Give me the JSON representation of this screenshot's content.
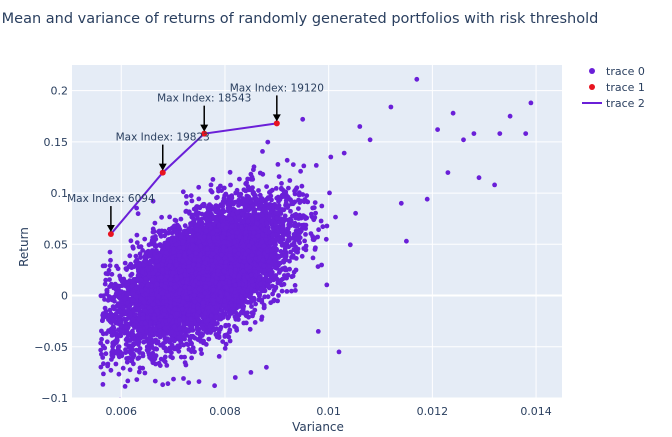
{
  "chart_data": {
    "type": "scatter",
    "title": "Mean and variance of returns of randomly generated portfolios with risk threshold",
    "xlabel": "Variance",
    "ylabel": "Return",
    "xlim": [
      0.00505,
      0.0145
    ],
    "ylim": [
      -0.1,
      0.225
    ],
    "x_ticks": [
      0.006,
      0.008,
      0.01,
      0.012,
      0.014
    ],
    "x_tick_labels": [
      "0.006",
      "0.008",
      "0.01",
      "0.012",
      "0.014"
    ],
    "y_ticks": [
      -0.1,
      -0.05,
      0,
      0.05,
      0.1,
      0.15,
      0.2
    ],
    "y_tick_labels": [
      "−0.1",
      "−0.05",
      "0",
      "0.05",
      "0.1",
      "0.15",
      "0.2"
    ],
    "grid": true,
    "legend_position": "top-right",
    "series": [
      {
        "name": "trace 0",
        "mode": "markers",
        "color": "#6a1fd8",
        "cloud": {
          "x_mean": 0.0076,
          "x_sd": 0.00075,
          "x_min": 0.0056,
          "y_center": 0.022,
          "y_slope": 24,
          "y_sd": 0.026,
          "count": 9000
        },
        "outliers_x": [
          0.0117,
          0.0139,
          0.0138,
          0.0133,
          0.0129,
          0.0132,
          0.0135,
          0.0124,
          0.0126,
          0.0121,
          0.0112,
          0.0108,
          0.0106,
          0.0103,
          0.0095,
          0.0092,
          0.0098,
          0.0065,
          0.0062,
          0.0058,
          0.0057,
          0.0063,
          0.0068,
          0.0072,
          0.0075,
          0.0078,
          0.0082,
          0.0085,
          0.0088,
          0.0073,
          0.0069,
          0.0102,
          0.0114,
          0.0119,
          0.0123,
          0.0115,
          0.0128
        ],
        "outliers_y": [
          0.211,
          0.188,
          0.158,
          0.158,
          0.115,
          0.108,
          0.175,
          0.178,
          0.152,
          0.162,
          0.184,
          0.152,
          0.165,
          0.139,
          0.172,
          0.132,
          -0.035,
          -0.05,
          -0.064,
          -0.073,
          0.015,
          -0.082,
          -0.087,
          -0.081,
          -0.084,
          -0.088,
          -0.08,
          -0.075,
          -0.07,
          -0.085,
          -0.086,
          -0.055,
          0.09,
          0.094,
          0.12,
          0.053,
          0.158
        ]
      },
      {
        "name": "trace 1",
        "mode": "markers",
        "color": "#e8131f",
        "x": [
          0.0058,
          0.0068,
          0.0076,
          0.009
        ],
        "y": [
          0.06,
          0.12,
          0.158,
          0.168
        ]
      },
      {
        "name": "trace 2",
        "mode": "lines",
        "color": "#6a1fd8",
        "x": [
          0.0058,
          0.0068,
          0.0076,
          0.009
        ],
        "y": [
          0.06,
          0.12,
          0.158,
          0.168
        ]
      }
    ],
    "annotations": [
      {
        "text": "Max Index: 6094",
        "x": 0.0058,
        "y": 0.06
      },
      {
        "text": "Max Index: 19823",
        "x": 0.0068,
        "y": 0.12
      },
      {
        "text": "Max Index: 18543",
        "x": 0.0076,
        "y": 0.158
      },
      {
        "text": "Max Index: 19120",
        "x": 0.009,
        "y": 0.168
      }
    ]
  }
}
